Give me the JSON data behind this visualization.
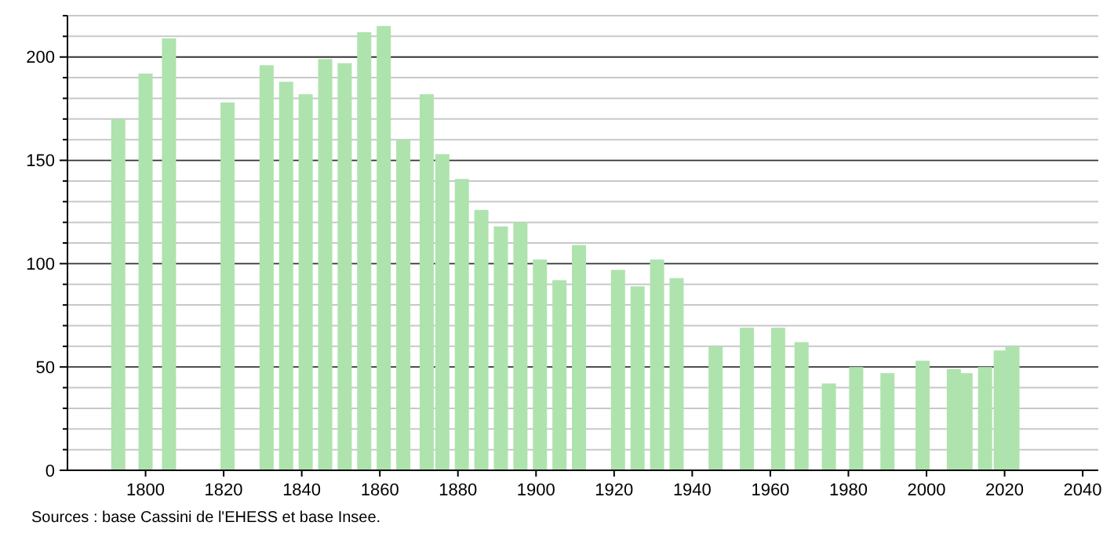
{
  "chart_data": {
    "type": "bar",
    "x": [
      1793,
      1800,
      1806,
      1821,
      1831,
      1836,
      1841,
      1846,
      1851,
      1856,
      1861,
      1866,
      1872,
      1876,
      1881,
      1886,
      1891,
      1896,
      1901,
      1906,
      1911,
      1921,
      1926,
      1931,
      1936,
      1946,
      1954,
      1962,
      1968,
      1975,
      1982,
      1990,
      1999,
      2007,
      2010,
      2015,
      2019,
      2022
    ],
    "values": [
      170,
      192,
      209,
      178,
      196,
      188,
      182,
      199,
      197,
      212,
      215,
      160,
      182,
      153,
      141,
      126,
      118,
      120,
      102,
      92,
      109,
      97,
      89,
      102,
      93,
      60,
      69,
      69,
      62,
      42,
      50,
      47,
      53,
      49,
      47,
      50,
      58,
      60
    ],
    "color": "#aee3ae",
    "xlim": [
      1780,
      2044
    ],
    "xticks": [
      1800,
      1820,
      1840,
      1860,
      1880,
      1900,
      1920,
      1940,
      1960,
      1980,
      2000,
      2020,
      2040
    ],
    "ylim": [
      0,
      220
    ],
    "yticks": [
      0,
      {
        "value": 10,
        "label": null
      },
      {
        "value": 20,
        "label": null
      },
      {
        "value": 30,
        "label": null
      },
      {
        "value": 40,
        "label": null
      },
      50,
      {
        "value": 60,
        "label": null
      },
      {
        "value": 70,
        "label": null
      },
      {
        "value": 80,
        "label": null
      },
      {
        "value": 90,
        "label": null
      },
      100,
      {
        "value": 110,
        "label": null
      },
      {
        "value": 120,
        "label": null
      },
      {
        "value": 130,
        "label": null
      },
      {
        "value": 140,
        "label": null
      },
      150,
      {
        "value": 160,
        "label": null
      },
      {
        "value": 170,
        "label": null
      },
      {
        "value": 180,
        "label": null
      },
      {
        "value": 190,
        "label": null
      },
      200,
      {
        "value": 210,
        "label": null
      },
      {
        "value": 220,
        "label": null
      }
    ],
    "grid": "y",
    "annotations": [
      "Sources : base Cassini de l'EHESS et base Insee."
    ]
  }
}
